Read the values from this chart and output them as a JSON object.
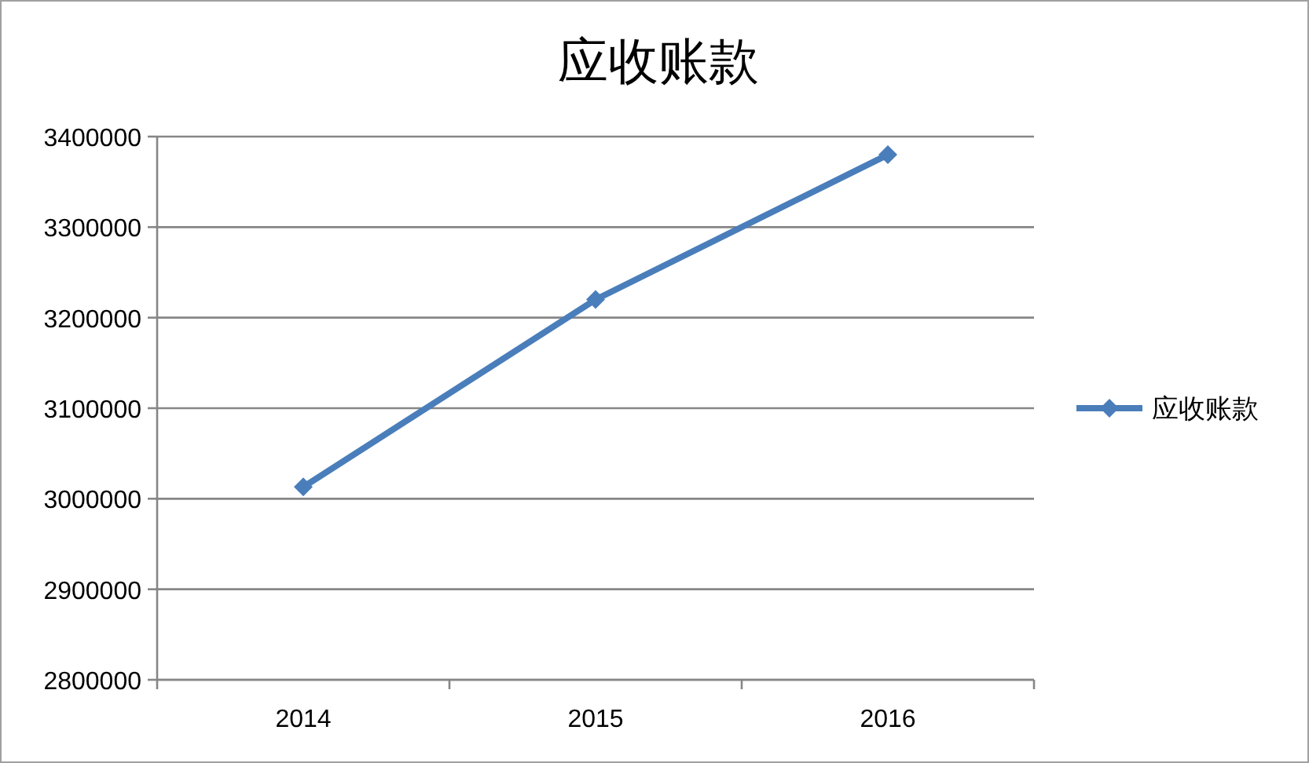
{
  "chart_data": {
    "type": "line",
    "title": "应收账款",
    "categories": [
      "2014",
      "2015",
      "2016"
    ],
    "series": [
      {
        "name": "应收账款",
        "color": "#4a7ebb",
        "values": [
          3013000,
          3220000,
          3380000
        ]
      }
    ],
    "ylim": [
      2800000,
      3400000
    ],
    "yticks": [
      2800000,
      2900000,
      3000000,
      3100000,
      3200000,
      3300000,
      3400000
    ],
    "grid": "y",
    "legend": "right",
    "marker": "diamond",
    "line_style": "solid"
  }
}
